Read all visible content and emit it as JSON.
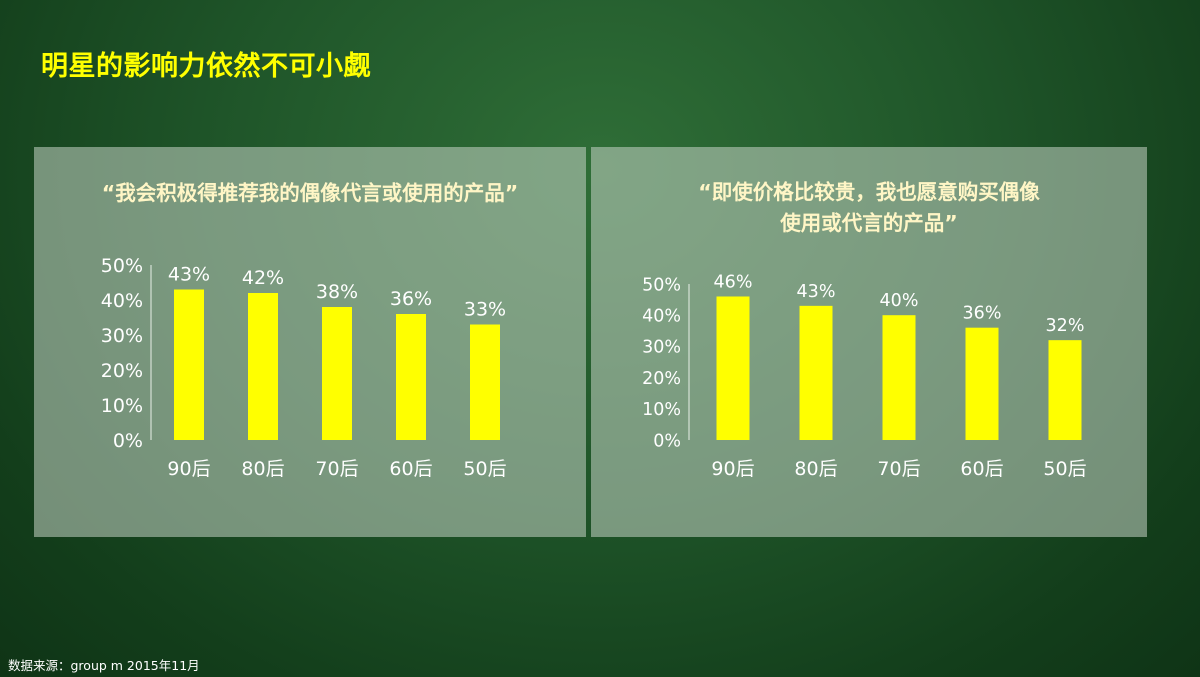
{
  "page_title": "明星的影响力依然不可小觑",
  "footer": "数据来源：group m 2015年11月",
  "colors": {
    "bar": "#ffff00",
    "title": "#ffff00",
    "panel_title": "#fff6c6",
    "text": "#ffffff"
  },
  "chart_data": [
    {
      "type": "bar",
      "title_lines": [
        "“我会积极得推荐我的偶像代言或使用的产品”"
      ],
      "categories": [
        "90后",
        "80后",
        "70后",
        "60后",
        "50后"
      ],
      "values": [
        43,
        42,
        38,
        36,
        33
      ],
      "data_labels": [
        "43%",
        "42%",
        "38%",
        "36%",
        "33%"
      ],
      "yticks": [
        "0%",
        "10%",
        "20%",
        "30%",
        "40%",
        "50%"
      ],
      "ylim": [
        0,
        50
      ],
      "grid": false,
      "legend": false
    },
    {
      "type": "bar",
      "title_lines": [
        "“即使价格比较贵，我也愿意购买偶像",
        "使用或代言的产品”"
      ],
      "categories": [
        "90后",
        "80后",
        "70后",
        "60后",
        "50后"
      ],
      "values": [
        46,
        43,
        40,
        36,
        32
      ],
      "data_labels": [
        "46%",
        "43%",
        "40%",
        "36%",
        "32%"
      ],
      "yticks": [
        "0%",
        "10%",
        "20%",
        "30%",
        "40%",
        "50%"
      ],
      "ylim": [
        0,
        50
      ],
      "grid": false,
      "legend": false
    }
  ]
}
